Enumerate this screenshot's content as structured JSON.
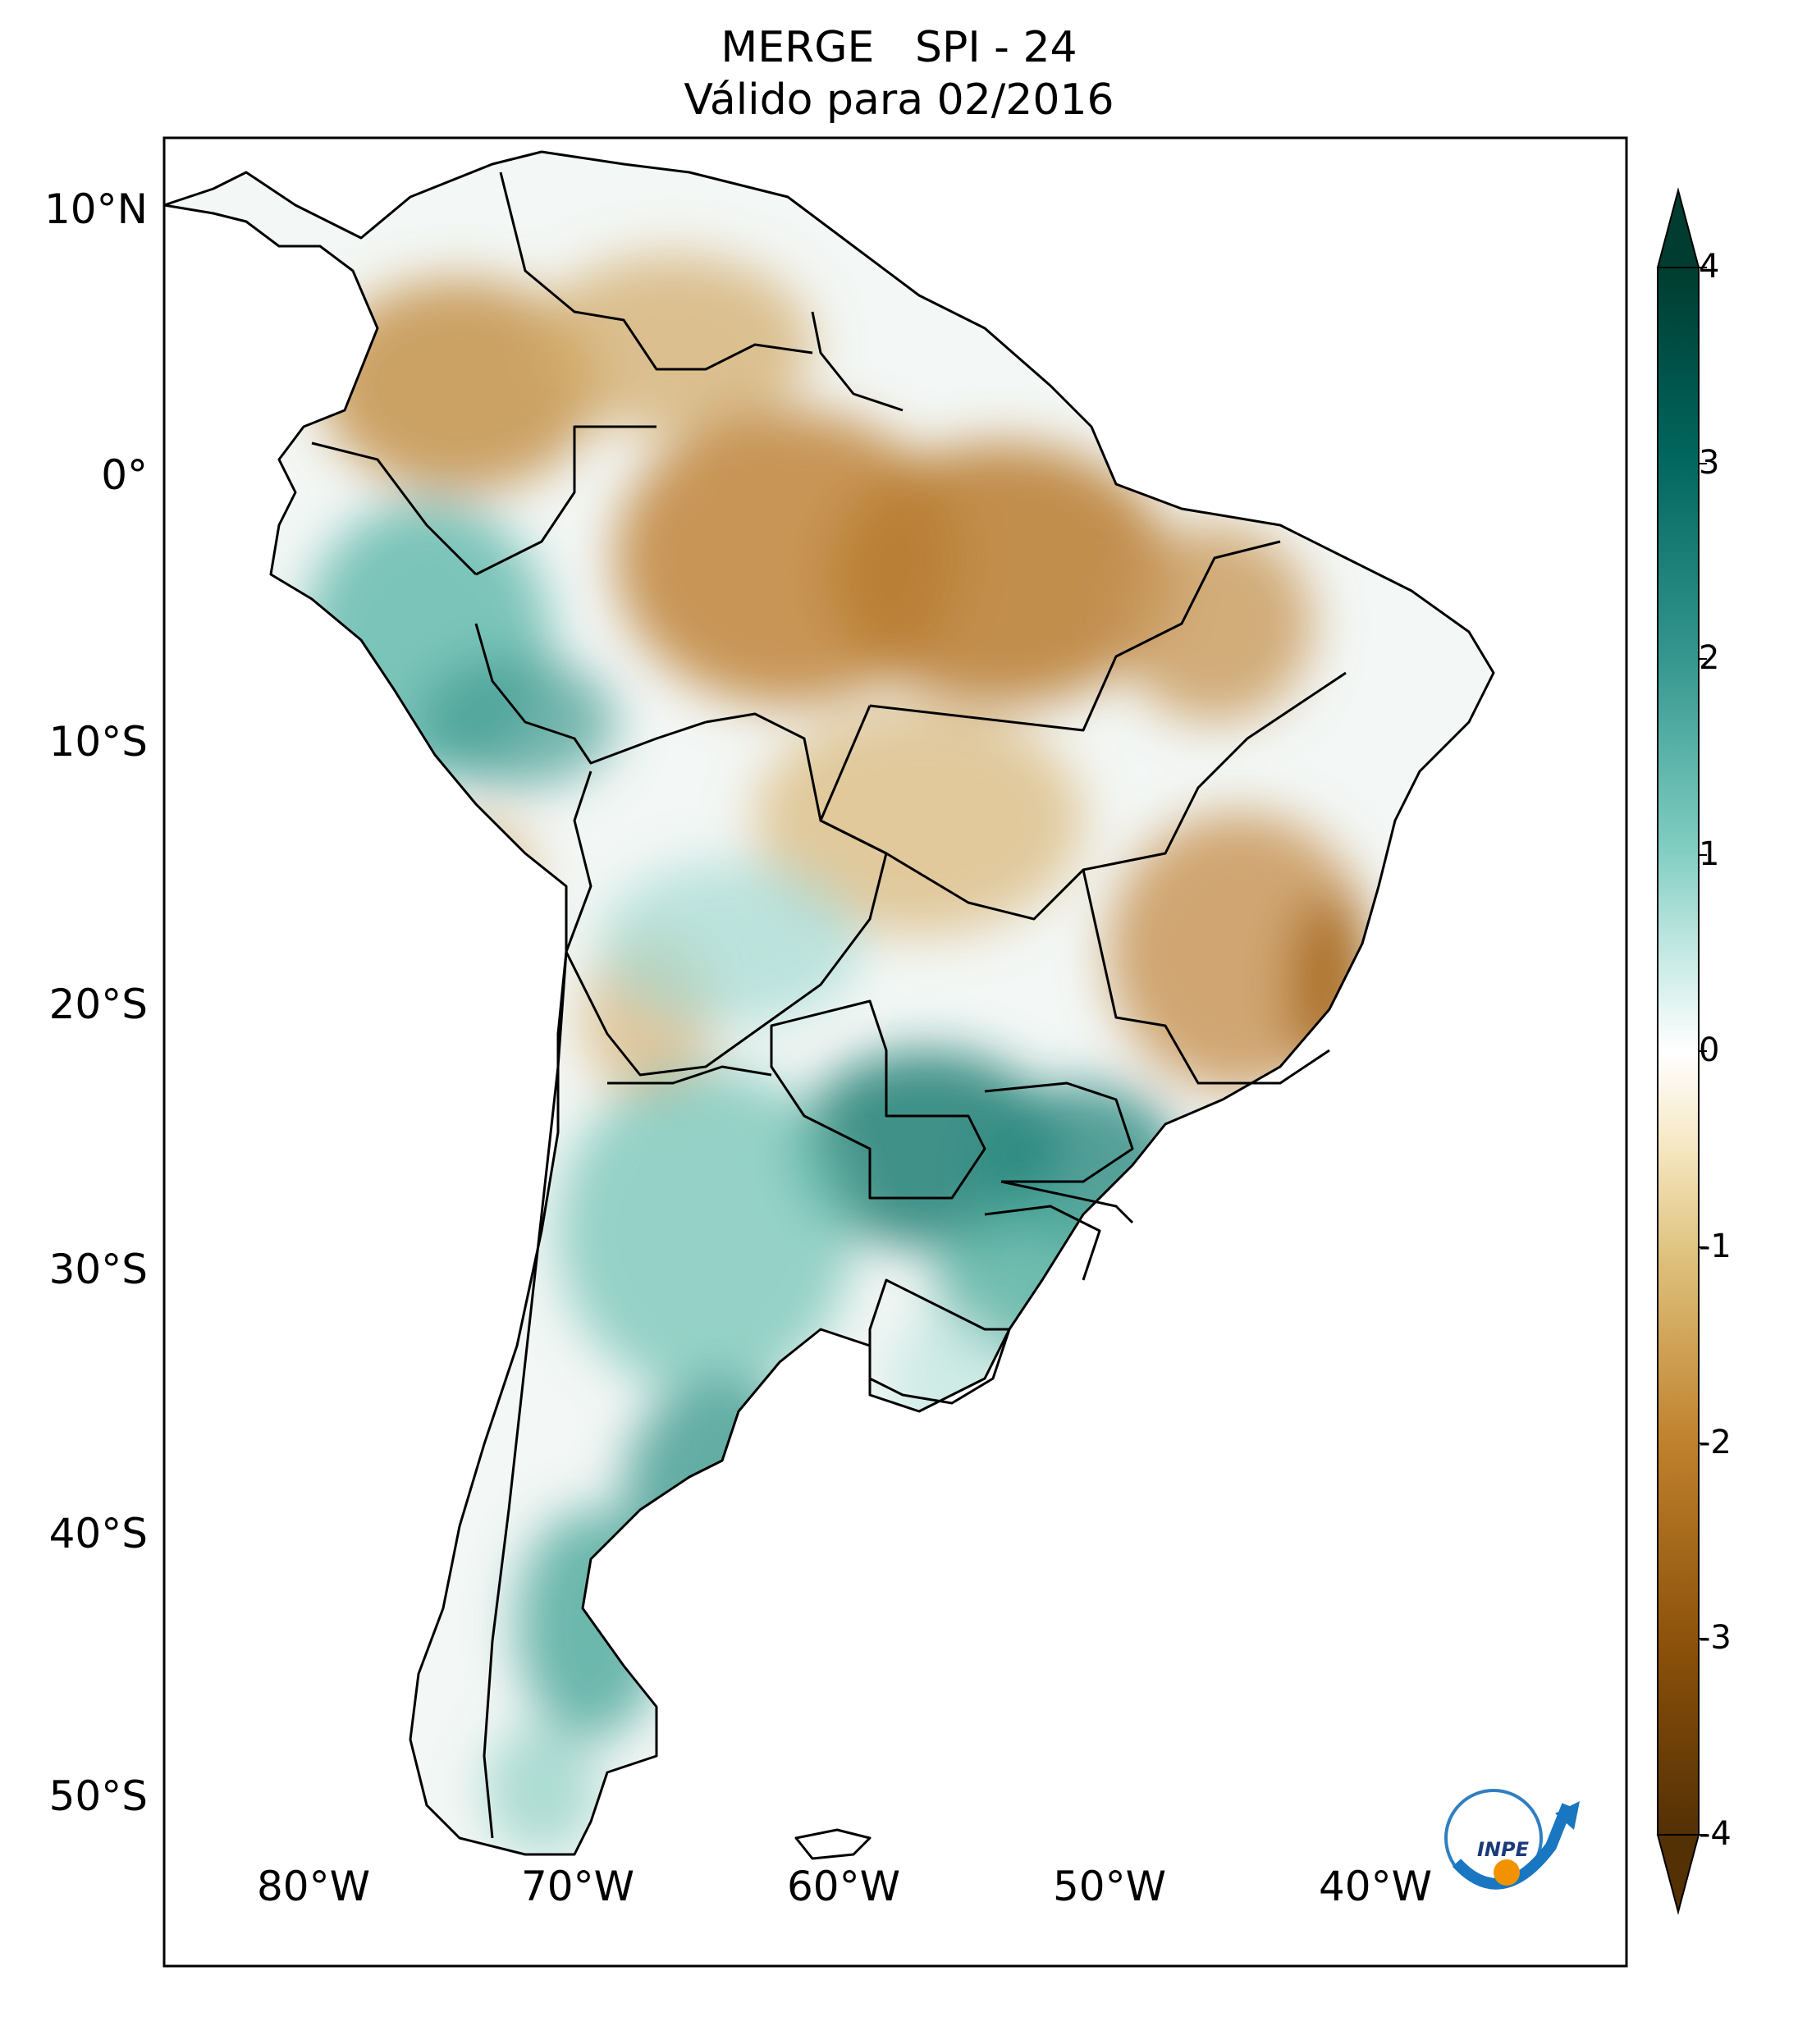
{
  "title": {
    "line1": "MERGE   SPI - 24",
    "line2": "Válido para 02/2016"
  },
  "axes": {
    "lat_ticks": [
      "10°N",
      "0°",
      "10°S",
      "20°S",
      "30°S",
      "40°S",
      "50°S"
    ],
    "lon_ticks": [
      "80°W",
      "70°W",
      "60°W",
      "50°W",
      "40°W"
    ]
  },
  "colorbar": {
    "ticks": [
      "4",
      "3",
      "2",
      "1",
      "0",
      "-1",
      "-2",
      "-3",
      "-4"
    ],
    "min": -4,
    "max": 4,
    "colors": [
      "#543005",
      "#8c510a",
      "#bf812d",
      "#dfc27d",
      "#f6e8c3",
      "#f5f5f5",
      "#c7eae5",
      "#80cdc1",
      "#35978f",
      "#01665e",
      "#003c30"
    ]
  },
  "logo": {
    "text": "INPE"
  }
}
